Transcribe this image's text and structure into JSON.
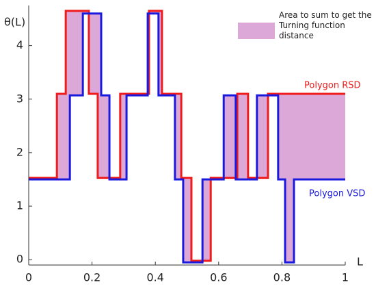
{
  "chart_data": {
    "type": "step",
    "ylabel": "θ(L)",
    "xlabel": "L",
    "area_label": "Area to sum to get the Turning function distance",
    "area_color": "#dca8d8",
    "xlim": [
      0,
      1
    ],
    "xticks": [
      0,
      0.2,
      0.4,
      0.6,
      0.8,
      1
    ],
    "ylim": [
      -0.1,
      4.75
    ],
    "yticks": [
      0,
      1,
      2,
      3,
      4
    ],
    "series": [
      {
        "name": "Polygon RSD",
        "color": "#ee1c1c",
        "x": [
          0,
          0.089,
          0.117,
          0.19,
          0.218,
          0.289,
          0.38,
          0.421,
          0.482,
          0.514,
          0.575,
          0.659,
          0.693,
          0.756
        ],
        "values": [
          1.53,
          3.1,
          4.65,
          3.1,
          1.53,
          3.1,
          4.65,
          3.1,
          1.53,
          -0.02,
          1.53,
          3.1,
          1.53,
          3.1
        ]
      },
      {
        "name": "Polygon VSD",
        "color": "#1a1adf",
        "x": [
          0,
          0.13,
          0.171,
          0.229,
          0.255,
          0.309,
          0.376,
          0.41,
          0.462,
          0.488,
          0.549,
          0.616,
          0.654,
          0.721,
          0.788,
          0.81,
          0.838
        ],
        "values": [
          1.5,
          3.07,
          4.6,
          3.07,
          1.5,
          3.07,
          4.6,
          3.07,
          1.5,
          -0.05,
          1.5,
          3.07,
          1.5,
          3.07,
          1.5,
          -0.05,
          1.5
        ]
      }
    ]
  }
}
